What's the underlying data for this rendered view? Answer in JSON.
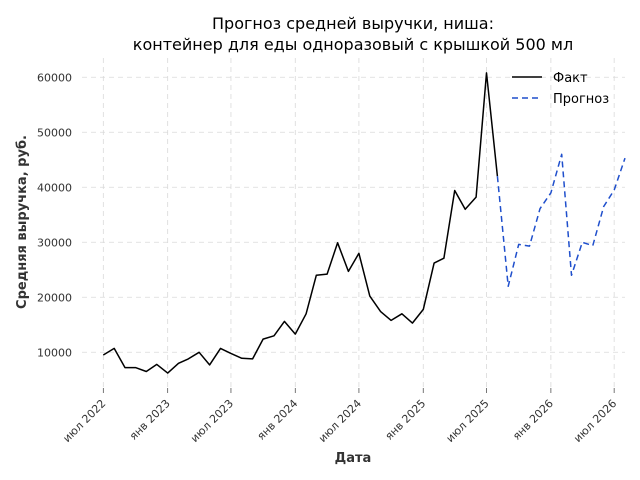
{
  "chart_data": {
    "type": "line",
    "title": "Прогноз средней выручки, ниша:",
    "subtitle": "контейнер для еды одноразовый с крышкой 500 мл",
    "xlabel": "Дата",
    "ylabel": "Средняя выручка, руб.",
    "ylim": [
      3500,
      63500
    ],
    "xlim": [
      "2022-05-01",
      "2026-08-01"
    ],
    "grid": true,
    "legend_position": "top-right",
    "y_ticks": [
      10000,
      20000,
      30000,
      40000,
      50000,
      60000
    ],
    "y_tick_labels": [
      "10000",
      "20000",
      "30000",
      "40000",
      "50000",
      "60000"
    ],
    "x_ticks": [
      "2022-07-01",
      "2023-01-01",
      "2023-07-01",
      "2024-01-01",
      "2024-07-01",
      "2025-01-01",
      "2025-07-01",
      "2026-01-01",
      "2026-07-01"
    ],
    "x_tick_labels": [
      "июл 2022",
      "янв 2023",
      "июл 2023",
      "янв 2024",
      "июл 2024",
      "янв 2025",
      "июл 2025",
      "янв 2026",
      "июл 2026"
    ],
    "series": [
      {
        "name": "Факт",
        "color": "#000000",
        "style": "solid",
        "x": [
          "2022-07-01",
          "2022-08-01",
          "2022-09-01",
          "2022-10-01",
          "2022-11-01",
          "2022-12-01",
          "2023-01-01",
          "2023-02-01",
          "2023-03-01",
          "2023-04-01",
          "2023-05-01",
          "2023-06-01",
          "2023-07-01",
          "2023-08-01",
          "2023-09-01",
          "2023-10-01",
          "2023-11-01",
          "2023-12-01",
          "2024-01-01",
          "2024-02-01",
          "2024-03-01",
          "2024-04-01",
          "2024-05-01",
          "2024-06-01",
          "2024-07-01",
          "2024-08-01",
          "2024-09-01",
          "2024-10-01",
          "2024-11-01",
          "2024-12-01",
          "2025-01-01",
          "2025-02-01",
          "2025-03-01",
          "2025-04-01",
          "2025-05-01",
          "2025-06-01",
          "2025-07-01",
          "2025-08-01"
        ],
        "y": [
          9500,
          10700,
          7200,
          7200,
          6500,
          7800,
          6200,
          8000,
          8800,
          10000,
          7700,
          10700,
          9800,
          8900,
          8800,
          12400,
          13000,
          15600,
          13300,
          17000,
          24000,
          24200,
          29900,
          24700,
          28000,
          20200,
          17400,
          15800,
          17000,
          15300,
          17800,
          26200,
          27100,
          39400,
          36000,
          38200,
          60800,
          42000
        ]
      },
      {
        "name": "Прогноз",
        "color": "#1f4fcc",
        "style": "dashed",
        "x": [
          "2025-08-01",
          "2025-09-01",
          "2025-10-01",
          "2025-11-01",
          "2025-12-01",
          "2026-01-01",
          "2026-02-01",
          "2026-03-01",
          "2026-04-01",
          "2026-05-01",
          "2026-06-01",
          "2026-07-01",
          "2026-08-01"
        ],
        "y": [
          42000,
          22000,
          29600,
          29300,
          36100,
          39000,
          46000,
          24000,
          30000,
          29400,
          36500,
          39500,
          45300
        ]
      }
    ]
  }
}
